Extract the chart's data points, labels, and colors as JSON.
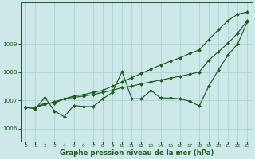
{
  "xlabel": "Graphe pression niveau de la mer (hPa)",
  "background_color": "#cce8e8",
  "grid_color": "#aacccc",
  "line_color": "#1a5c1a",
  "xlim_min": -0.5,
  "xlim_max": 23.5,
  "ylim_min": 1005.55,
  "ylim_max": 1010.45,
  "yticks": [
    1006,
    1007,
    1008,
    1009
  ],
  "xticks": [
    0,
    1,
    2,
    3,
    4,
    5,
    6,
    7,
    8,
    9,
    10,
    11,
    12,
    13,
    14,
    15,
    16,
    17,
    18,
    19,
    20,
    21,
    22,
    23
  ],
  "series_jagged": [
    1006.75,
    1006.7,
    1007.1,
    1006.62,
    1006.42,
    1006.82,
    1006.78,
    1006.78,
    1007.05,
    1007.28,
    1008.02,
    1007.05,
    1007.05,
    1007.35,
    1007.08,
    1007.08,
    1007.05,
    1006.97,
    1006.8,
    1007.5,
    1008.08,
    1008.6,
    1009.0,
    1009.78
  ],
  "series_mid": [
    1006.75,
    1006.75,
    1006.9,
    1006.9,
    1007.05,
    1007.1,
    1007.15,
    1007.2,
    1007.28,
    1007.35,
    1007.45,
    1007.5,
    1007.58,
    1007.65,
    1007.72,
    1007.78,
    1007.85,
    1007.92,
    1008.0,
    1008.42,
    1008.72,
    1009.02,
    1009.38,
    1009.82
  ],
  "series_top": [
    1006.75,
    1006.75,
    1006.85,
    1006.95,
    1007.05,
    1007.15,
    1007.2,
    1007.28,
    1007.35,
    1007.5,
    1007.65,
    1007.8,
    1007.95,
    1008.1,
    1008.25,
    1008.38,
    1008.5,
    1008.65,
    1008.78,
    1009.15,
    1009.5,
    1009.82,
    1010.05,
    1010.12
  ]
}
